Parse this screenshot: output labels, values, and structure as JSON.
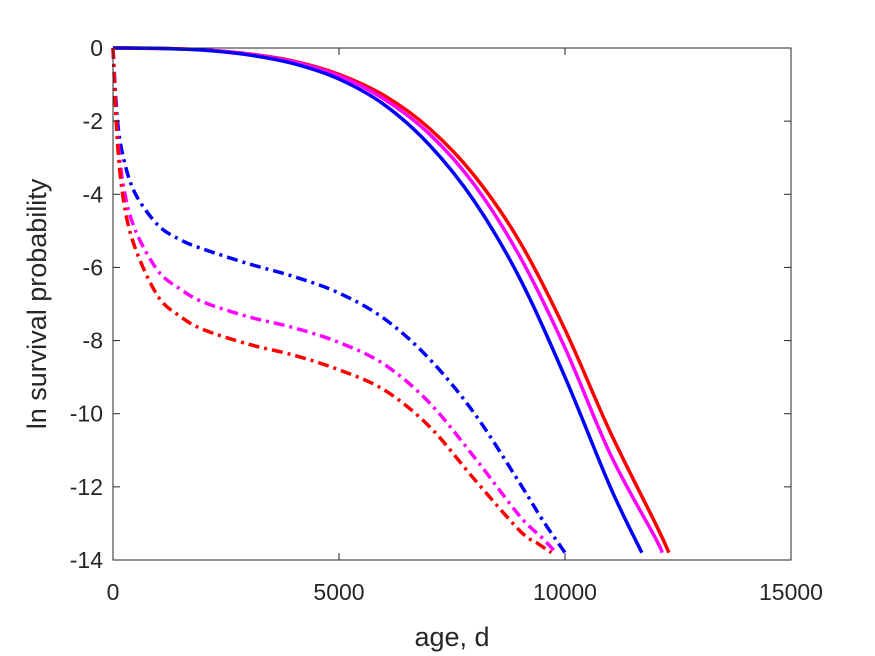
{
  "chart_data": {
    "type": "line",
    "xlabel": "age, d",
    "ylabel": "ln survival probability",
    "xlim": [
      0,
      15000
    ],
    "ylim": [
      -14,
      0
    ],
    "xticks": [
      0,
      5000,
      10000,
      15000
    ],
    "yticks": [
      0,
      -2,
      -4,
      -6,
      -8,
      -10,
      -12,
      -14
    ],
    "grid": false,
    "legend": "none",
    "series": [
      {
        "color": "#ff0000",
        "style": "solid",
        "x": [
          0,
          1000,
          2000,
          3000,
          4000,
          5000,
          6000,
          7000,
          8000,
          9000,
          10000,
          11000,
          12000,
          12300
        ],
        "y": [
          0,
          -0.01,
          -0.05,
          -0.16,
          -0.36,
          -0.72,
          -1.3,
          -2.2,
          -3.5,
          -5.3,
          -7.7,
          -10.5,
          -13.0,
          -13.8
        ]
      },
      {
        "color": "#ff00ff",
        "style": "solid",
        "x": [
          0,
          1000,
          2000,
          3000,
          4000,
          5000,
          6000,
          7000,
          8000,
          9000,
          10000,
          11000,
          12000,
          12150
        ],
        "y": [
          0,
          -0.01,
          -0.05,
          -0.17,
          -0.38,
          -0.76,
          -1.4,
          -2.35,
          -3.75,
          -5.7,
          -8.2,
          -11.1,
          -13.4,
          -13.8
        ]
      },
      {
        "color": "#0000ff",
        "style": "solid",
        "x": [
          0,
          1000,
          2000,
          3000,
          4000,
          5000,
          6000,
          7000,
          8000,
          9000,
          10000,
          11000,
          11700
        ],
        "y": [
          0,
          -0.01,
          -0.06,
          -0.19,
          -0.43,
          -0.85,
          -1.55,
          -2.65,
          -4.2,
          -6.3,
          -9.0,
          -12.0,
          -13.8
        ]
      },
      {
        "color": "#0000ff",
        "style": "dashdot",
        "x": [
          0,
          100,
          250,
          500,
          1000,
          1500,
          2000,
          3000,
          4000,
          5000,
          6000,
          7000,
          8000,
          9000,
          9500,
          10000
        ],
        "y": [
          0,
          -2.0,
          -3.1,
          -4.0,
          -4.85,
          -5.25,
          -5.5,
          -5.9,
          -6.25,
          -6.7,
          -7.4,
          -8.5,
          -10.0,
          -11.9,
          -12.9,
          -13.8
        ]
      },
      {
        "color": "#ff00ff",
        "style": "dashdot",
        "x": [
          0,
          100,
          250,
          500,
          1000,
          1500,
          2000,
          3000,
          4000,
          5000,
          6000,
          7000,
          8000,
          9000,
          9500,
          9800
        ],
        "y": [
          0,
          -2.4,
          -3.9,
          -5.0,
          -6.1,
          -6.6,
          -6.95,
          -7.35,
          -7.65,
          -8.05,
          -8.65,
          -9.7,
          -11.2,
          -12.8,
          -13.4,
          -13.8
        ]
      },
      {
        "color": "#ff0000",
        "style": "dashdot",
        "x": [
          0,
          100,
          250,
          500,
          1000,
          1500,
          2000,
          3000,
          4000,
          5000,
          6000,
          7000,
          8000,
          9000,
          9400,
          9700
        ],
        "y": [
          0,
          -2.6,
          -4.3,
          -5.5,
          -6.8,
          -7.35,
          -7.7,
          -8.1,
          -8.4,
          -8.8,
          -9.35,
          -10.35,
          -11.8,
          -13.2,
          -13.55,
          -13.8
        ]
      }
    ]
  }
}
